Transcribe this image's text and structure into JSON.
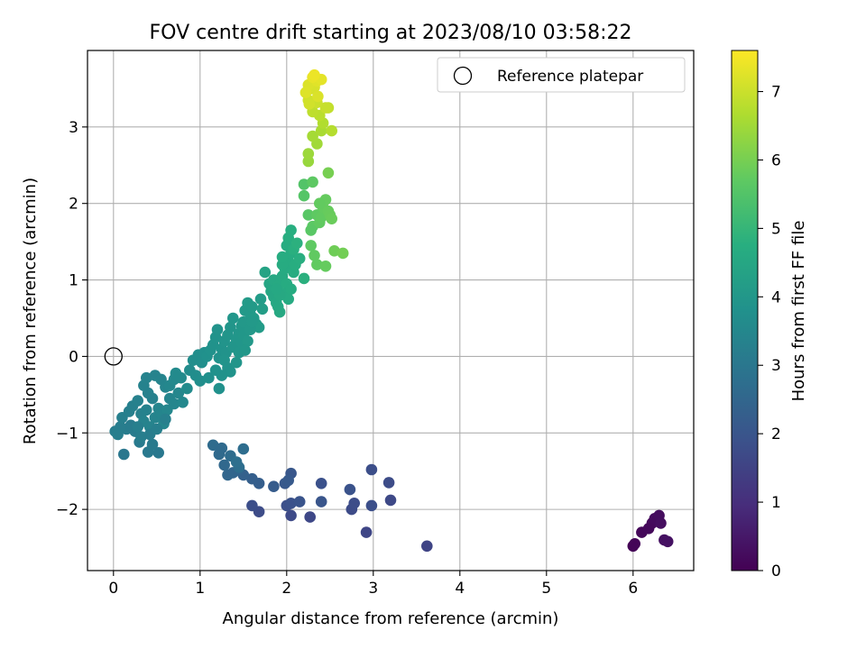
{
  "chart_data": {
    "type": "scatter",
    "title": "FOV centre drift starting at 2023/08/10 03:58:22",
    "xlabel": "Angular distance from reference (arcmin)",
    "ylabel": "Rotation from reference (arcmin)",
    "xlim": [
      -0.3,
      6.7
    ],
    "ylim": [
      -2.8,
      4.0
    ],
    "x_ticks": [
      0,
      1,
      2,
      3,
      4,
      5,
      6
    ],
    "y_ticks": [
      -2,
      -1,
      0,
      1,
      2,
      3
    ],
    "grid": true,
    "legend": {
      "position": "top-right",
      "entries": [
        "Reference platepar"
      ]
    },
    "reference_point": {
      "x": 0,
      "y": 0
    },
    "colorbar": {
      "label": "Hours from first FF file",
      "colormap": "viridis",
      "range": [
        0,
        7.6
      ],
      "ticks": [
        0,
        1,
        2,
        3,
        4,
        5,
        6,
        7
      ]
    },
    "points": [
      [
        6.0,
        -2.48,
        0.05
      ],
      [
        6.02,
        -2.45,
        0.08
      ],
      [
        6.1,
        -2.3,
        0.12
      ],
      [
        6.18,
        -2.25,
        0.15
      ],
      [
        6.22,
        -2.18,
        0.18
      ],
      [
        6.25,
        -2.12,
        0.22
      ],
      [
        6.3,
        -2.08,
        0.25
      ],
      [
        6.32,
        -2.18,
        0.28
      ],
      [
        6.36,
        -2.4,
        0.32
      ],
      [
        6.4,
        -2.42,
        0.35
      ],
      [
        3.62,
        -2.48,
        1.55
      ],
      [
        2.92,
        -2.3,
        1.6
      ],
      [
        2.27,
        -2.1,
        1.65
      ],
      [
        2.05,
        -2.08,
        1.7
      ],
      [
        1.68,
        -2.03,
        1.75
      ],
      [
        1.6,
        -1.95,
        1.8
      ],
      [
        2.0,
        -1.95,
        1.85
      ],
      [
        2.05,
        -1.92,
        1.9
      ],
      [
        2.15,
        -1.9,
        1.95
      ],
      [
        2.4,
        -1.9,
        2.0
      ],
      [
        2.75,
        -2.0,
        1.72
      ],
      [
        2.78,
        -1.92,
        1.78
      ],
      [
        2.98,
        -1.95,
        1.82
      ],
      [
        3.2,
        -1.88,
        1.68
      ],
      [
        3.18,
        -1.65,
        1.75
      ],
      [
        2.98,
        -1.48,
        1.8
      ],
      [
        2.4,
        -1.66,
        1.88
      ],
      [
        2.73,
        -1.74,
        1.92
      ],
      [
        2.05,
        -1.53,
        2.05
      ],
      [
        1.98,
        -1.66,
        2.1
      ],
      [
        2.02,
        -1.62,
        2.15
      ],
      [
        1.85,
        -1.7,
        2.2
      ],
      [
        1.68,
        -1.66,
        2.25
      ],
      [
        1.6,
        -1.6,
        2.3
      ],
      [
        1.5,
        -1.55,
        2.35
      ],
      [
        1.45,
        -1.48,
        2.4
      ],
      [
        1.38,
        -1.52,
        2.45
      ],
      [
        1.32,
        -1.55,
        2.5
      ],
      [
        1.28,
        -1.42,
        2.55
      ],
      [
        1.22,
        -1.28,
        2.6
      ],
      [
        1.15,
        -1.16,
        2.65
      ],
      [
        1.25,
        -1.2,
        2.62
      ],
      [
        1.35,
        -1.3,
        2.68
      ],
      [
        1.45,
        -1.45,
        2.72
      ],
      [
        1.5,
        -1.21,
        2.7
      ],
      [
        1.42,
        -1.38,
        2.75
      ],
      [
        0.12,
        -1.28,
        3.0
      ],
      [
        0.52,
        -1.26,
        3.02
      ],
      [
        0.4,
        -1.25,
        3.05
      ],
      [
        0.3,
        -1.12,
        3.08
      ],
      [
        0.45,
        -1.15,
        3.1
      ],
      [
        0.25,
        -0.98,
        3.12
      ],
      [
        0.2,
        -0.9,
        3.14
      ],
      [
        0.15,
        -0.95,
        3.16
      ],
      [
        0.08,
        -0.92,
        3.18
      ],
      [
        0.02,
        -0.98,
        3.2
      ],
      [
        0.05,
        -1.02,
        3.22
      ],
      [
        0.1,
        -0.8,
        3.24
      ],
      [
        0.18,
        -0.72,
        3.26
      ],
      [
        0.22,
        -0.65,
        3.28
      ],
      [
        0.28,
        -0.58,
        3.3
      ],
      [
        0.32,
        -0.75,
        3.32
      ],
      [
        0.38,
        -0.7,
        3.34
      ],
      [
        0.35,
        -0.85,
        3.36
      ],
      [
        0.42,
        -0.92,
        3.38
      ],
      [
        0.48,
        -0.8,
        3.4
      ],
      [
        0.52,
        -0.68,
        3.42
      ],
      [
        0.55,
        -0.75,
        3.44
      ],
      [
        0.58,
        -0.88,
        3.46
      ],
      [
        0.62,
        -0.7,
        3.48
      ],
      [
        0.45,
        -0.55,
        3.3
      ],
      [
        0.4,
        -0.48,
        3.32
      ],
      [
        0.35,
        -0.38,
        3.34
      ],
      [
        0.38,
        -0.28,
        3.36
      ],
      [
        0.48,
        -0.25,
        3.38
      ],
      [
        0.55,
        -0.3,
        3.4
      ],
      [
        0.6,
        -0.4,
        3.42
      ],
      [
        0.65,
        -0.55,
        3.44
      ],
      [
        0.7,
        -0.62,
        3.46
      ],
      [
        0.75,
        -0.48,
        3.48
      ],
      [
        0.28,
        -0.92,
        3.25
      ],
      [
        0.32,
        -1.05,
        3.22
      ],
      [
        0.42,
        -1.02,
        3.2
      ],
      [
        0.5,
        -0.95,
        3.24
      ],
      [
        0.6,
        -0.82,
        3.28
      ],
      [
        0.65,
        -0.38,
        3.5
      ],
      [
        0.7,
        -0.3,
        3.55
      ],
      [
        0.78,
        -0.28,
        3.58
      ],
      [
        0.72,
        -0.22,
        3.6
      ],
      [
        0.8,
        -0.6,
        3.52
      ],
      [
        0.85,
        -0.42,
        3.62
      ],
      [
        0.88,
        -0.18,
        3.65
      ],
      [
        0.95,
        -0.25,
        3.68
      ],
      [
        0.92,
        -0.05,
        3.7
      ],
      [
        0.98,
        0.02,
        3.72
      ],
      [
        1.02,
        -0.08,
        3.74
      ],
      [
        1.05,
        0.05,
        3.76
      ],
      [
        1.0,
        -0.32,
        3.7
      ],
      [
        1.1,
        -0.28,
        3.78
      ],
      [
        1.08,
        0.0,
        3.8
      ],
      [
        1.12,
        0.08,
        3.82
      ],
      [
        1.15,
        0.15,
        3.84
      ],
      [
        1.18,
        0.25,
        3.86
      ],
      [
        1.2,
        0.35,
        3.88
      ],
      [
        1.22,
        -0.02,
        3.84
      ],
      [
        1.25,
        0.1,
        3.86
      ],
      [
        1.28,
        0.2,
        3.9
      ],
      [
        1.3,
        0.05,
        3.88
      ],
      [
        1.32,
        0.28,
        3.92
      ],
      [
        1.35,
        0.38,
        3.94
      ],
      [
        1.38,
        0.5,
        3.96
      ],
      [
        1.4,
        0.15,
        3.92
      ],
      [
        1.42,
        0.22,
        3.95
      ],
      [
        1.45,
        0.3,
        3.98
      ],
      [
        1.48,
        0.4,
        4.0
      ],
      [
        1.5,
        0.45,
        4.02
      ],
      [
        1.52,
        0.6,
        4.05
      ],
      [
        1.55,
        0.7,
        4.08
      ],
      [
        1.58,
        0.55,
        4.06
      ],
      [
        1.6,
        0.65,
        4.1
      ],
      [
        1.62,
        0.5,
        4.08
      ],
      [
        1.65,
        0.42,
        4.1
      ],
      [
        1.68,
        0.38,
        4.12
      ],
      [
        1.7,
        0.75,
        4.15
      ],
      [
        1.72,
        0.62,
        4.18
      ],
      [
        1.28,
        -0.05,
        3.9
      ],
      [
        1.32,
        -0.15,
        3.88
      ],
      [
        1.35,
        -0.2,
        3.86
      ],
      [
        1.25,
        -0.25,
        3.84
      ],
      [
        1.42,
        -0.08,
        3.92
      ],
      [
        1.22,
        -0.42,
        3.8
      ],
      [
        1.18,
        -0.18,
        3.82
      ],
      [
        1.38,
        0.12,
        3.94
      ],
      [
        1.45,
        0.05,
        3.96
      ],
      [
        1.48,
        0.18,
        3.98
      ],
      [
        1.5,
        0.28,
        4.0
      ],
      [
        1.55,
        0.2,
        4.02
      ],
      [
        1.58,
        0.35,
        4.04
      ],
      [
        1.6,
        0.45,
        4.06
      ],
      [
        1.52,
        0.08,
        4.0
      ],
      [
        1.75,
        1.1,
        4.4
      ],
      [
        1.8,
        0.95,
        4.45
      ],
      [
        1.82,
        0.85,
        4.48
      ],
      [
        1.85,
        0.78,
        4.5
      ],
      [
        1.88,
        0.7,
        4.52
      ],
      [
        1.9,
        0.65,
        4.54
      ],
      [
        1.92,
        0.58,
        4.56
      ],
      [
        1.85,
        1.0,
        4.55
      ],
      [
        1.9,
        0.92,
        4.58
      ],
      [
        1.95,
        1.05,
        4.6
      ],
      [
        1.98,
        1.15,
        4.62
      ],
      [
        2.0,
        0.95,
        4.64
      ],
      [
        2.02,
        1.25,
        4.66
      ],
      [
        2.05,
        1.35,
        4.68
      ],
      [
        2.0,
        1.45,
        4.7
      ],
      [
        2.02,
        1.55,
        4.72
      ],
      [
        2.05,
        1.65,
        4.74
      ],
      [
        1.95,
        1.2,
        4.65
      ],
      [
        1.98,
        0.82,
        4.6
      ],
      [
        2.02,
        0.75,
        4.62
      ],
      [
        2.08,
        1.1,
        4.7
      ],
      [
        2.1,
        1.2,
        4.72
      ],
      [
        2.15,
        1.28,
        4.76
      ],
      [
        2.2,
        1.02,
        4.8
      ],
      [
        2.05,
        0.88,
        4.66
      ],
      [
        1.92,
        0.8,
        4.56
      ],
      [
        1.88,
        0.88,
        4.54
      ],
      [
        2.08,
        1.4,
        4.78
      ],
      [
        2.12,
        1.48,
        4.82
      ],
      [
        1.95,
        1.3,
        4.68
      ],
      [
        2.2,
        2.25,
        5.5
      ],
      [
        2.2,
        2.1,
        5.55
      ],
      [
        2.25,
        1.85,
        5.6
      ],
      [
        2.3,
        1.7,
        5.65
      ],
      [
        2.28,
        1.65,
        5.62
      ],
      [
        2.35,
        1.85,
        5.7
      ],
      [
        2.38,
        1.75,
        5.72
      ],
      [
        2.4,
        1.82,
        5.74
      ],
      [
        2.42,
        1.95,
        5.76
      ],
      [
        2.45,
        2.05,
        5.78
      ],
      [
        2.48,
        1.9,
        5.8
      ],
      [
        2.5,
        1.85,
        5.82
      ],
      [
        2.52,
        1.8,
        5.84
      ],
      [
        2.38,
        2.0,
        5.75
      ],
      [
        2.3,
        2.28,
        5.68
      ],
      [
        2.28,
        1.45,
        5.7
      ],
      [
        2.32,
        1.32,
        5.72
      ],
      [
        2.35,
        1.2,
        5.74
      ],
      [
        2.45,
        1.18,
        5.78
      ],
      [
        2.55,
        1.38,
        5.9
      ],
      [
        2.65,
        1.35,
        5.95
      ],
      [
        2.48,
        2.4,
        6.0
      ],
      [
        2.25,
        2.55,
        6.4
      ],
      [
        2.25,
        2.65,
        6.45
      ],
      [
        2.35,
        2.78,
        6.5
      ],
      [
        2.3,
        2.88,
        6.55
      ],
      [
        2.4,
        2.95,
        6.6
      ],
      [
        2.42,
        3.05,
        6.7
      ],
      [
        2.38,
        3.15,
        6.8
      ],
      [
        2.3,
        3.2,
        6.85
      ],
      [
        2.52,
        2.95,
        6.75
      ],
      [
        2.48,
        3.25,
        6.9
      ],
      [
        2.45,
        3.25,
        6.95
      ],
      [
        2.35,
        3.32,
        7.0
      ],
      [
        2.25,
        3.35,
        7.05
      ],
      [
        2.28,
        3.5,
        7.1
      ],
      [
        2.32,
        3.52,
        7.15
      ],
      [
        2.25,
        3.55,
        7.2
      ],
      [
        2.35,
        3.6,
        7.25
      ],
      [
        2.4,
        3.62,
        7.3
      ],
      [
        2.3,
        3.65,
        7.35
      ],
      [
        2.32,
        3.68,
        7.4
      ],
      [
        2.22,
        3.45,
        7.22
      ],
      [
        2.36,
        3.4,
        7.18
      ],
      [
        2.26,
        3.3,
        7.08
      ]
    ]
  }
}
